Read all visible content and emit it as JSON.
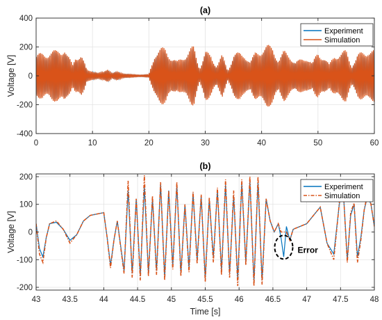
{
  "chart_data": [
    {
      "type": "line",
      "title": "(a)",
      "xlabel": "",
      "ylabel": "Voltage [V]",
      "xlim": [
        0,
        60
      ],
      "ylim": [
        -400,
        400
      ],
      "xticks": [
        "0",
        "10",
        "20",
        "30",
        "40",
        "50",
        "60"
      ],
      "yticks": [
        "400",
        "200",
        "0",
        "-200",
        "-400"
      ],
      "grid": true,
      "legend_position": "top-right",
      "series": [
        {
          "name": "Experiment",
          "color": "#0072BD",
          "style": "solid"
        },
        {
          "name": "Simulation",
          "color": "#D95319",
          "style": "solid"
        }
      ],
      "envelope": {
        "note": "peak amplitude of the oscillating voltage over time",
        "x": [
          0,
          1.5,
          2.5,
          3.5,
          4.5,
          5,
          5.5,
          6.5,
          7,
          8,
          9,
          10,
          11,
          12,
          12.7,
          13.5,
          14.5,
          15,
          16,
          17,
          18,
          19,
          20,
          21,
          22,
          23,
          24,
          25,
          26,
          27,
          27.5,
          28,
          29,
          30,
          31,
          32,
          33,
          34,
          35,
          36,
          37,
          38,
          39,
          40,
          41,
          42,
          43,
          44,
          45,
          46,
          47,
          48,
          49,
          50,
          51,
          52,
          53,
          54,
          55,
          56,
          57,
          58,
          59,
          60
        ],
        "y": [
          150,
          170,
          185,
          180,
          200,
          225,
          160,
          80,
          150,
          165,
          40,
          40,
          20,
          30,
          60,
          20,
          30,
          25,
          15,
          10,
          10,
          8,
          10,
          170,
          190,
          210,
          140,
          100,
          150,
          180,
          200,
          210,
          60,
          175,
          150,
          80,
          150,
          40,
          160,
          165,
          170,
          100,
          180,
          205,
          220,
          215,
          120,
          180,
          160,
          100,
          120,
          150,
          90,
          175,
          150,
          80,
          165,
          170,
          180,
          80,
          150,
          175,
          205,
          180
        ]
      }
    },
    {
      "type": "line",
      "title": "(b)",
      "xlabel": "Time [s]",
      "ylabel": "Voltage [V]",
      "xlim": [
        43,
        48
      ],
      "ylim": [
        -210,
        210
      ],
      "xticks": [
        "43",
        "43.5",
        "44",
        "44.5",
        "45",
        "45.5",
        "46",
        "46.5",
        "47",
        "47.5",
        "48"
      ],
      "yticks": [
        "200",
        "100",
        "0",
        "-100",
        "-200"
      ],
      "grid": true,
      "legend_position": "top-right",
      "annotation": {
        "text": "Error",
        "x": 46.66,
        "y": -55
      },
      "series": [
        {
          "name": "Experiment",
          "color": "#0072BD",
          "style": "solid",
          "x": [
            43,
            43.05,
            43.1,
            43.15,
            43.2,
            43.3,
            43.4,
            43.5,
            43.6,
            43.7,
            43.8,
            43.9,
            44,
            44.05,
            44.1,
            44.15,
            44.2,
            44.3,
            44.36,
            44.42,
            44.48,
            44.54,
            44.6,
            44.66,
            44.72,
            44.78,
            44.84,
            44.9,
            44.96,
            45.02,
            45.08,
            45.14,
            45.2,
            45.26,
            45.32,
            45.38,
            45.44,
            45.5,
            45.56,
            45.62,
            45.68,
            45.74,
            45.8,
            45.86,
            45.92,
            45.98,
            46.04,
            46.1,
            46.16,
            46.22,
            46.28,
            46.34,
            46.4,
            46.46,
            46.52,
            46.58,
            46.62,
            46.66,
            46.7,
            46.75,
            46.8,
            46.9,
            47,
            47.1,
            47.2,
            47.3,
            47.4,
            47.5,
            47.55,
            47.6,
            47.65,
            47.7,
            47.75,
            47.8,
            47.85,
            47.9,
            47.95,
            48
          ],
          "y": [
            30,
            -60,
            -90,
            -20,
            30,
            35,
            10,
            -30,
            -10,
            40,
            60,
            65,
            70,
            -20,
            -120,
            -30,
            40,
            -140,
            150,
            -150,
            120,
            -160,
            165,
            -150,
            120,
            -140,
            175,
            -165,
            150,
            -120,
            170,
            -150,
            100,
            -130,
            140,
            -100,
            130,
            -170,
            120,
            -90,
            150,
            -140,
            170,
            -150,
            130,
            -170,
            175,
            -110,
            185,
            -180,
            180,
            -175,
            120,
            40,
            0,
            30,
            -20,
            -90,
            20,
            -30,
            10,
            20,
            30,
            60,
            90,
            -40,
            -80,
            140,
            110,
            -100,
            60,
            100,
            -90,
            -20,
            80,
            130,
            100,
            20
          ]
        },
        {
          "name": "Simulation",
          "color": "#D95319",
          "style": "dash-dot",
          "x": [
            43,
            43.05,
            43.1,
            43.15,
            43.2,
            43.3,
            43.4,
            43.5,
            43.6,
            43.7,
            43.8,
            43.9,
            44,
            44.05,
            44.1,
            44.15,
            44.2,
            44.3,
            44.36,
            44.42,
            44.48,
            44.54,
            44.6,
            44.66,
            44.72,
            44.78,
            44.84,
            44.9,
            44.96,
            45.02,
            45.08,
            45.14,
            45.2,
            45.26,
            45.32,
            45.38,
            45.44,
            45.5,
            45.56,
            45.62,
            45.68,
            45.74,
            45.8,
            45.86,
            45.92,
            45.98,
            46.04,
            46.1,
            46.16,
            46.22,
            46.28,
            46.34,
            46.4,
            46.46,
            46.52,
            46.58,
            46.62,
            46.66,
            46.7,
            46.75,
            46.8,
            46.9,
            47,
            47.1,
            47.2,
            47.3,
            47.4,
            47.5,
            47.55,
            47.6,
            47.65,
            47.7,
            47.75,
            47.8,
            47.85,
            47.9,
            47.95,
            48
          ],
          "y": [
            30,
            -80,
            -110,
            -20,
            30,
            40,
            10,
            -40,
            -10,
            40,
            60,
            65,
            70,
            -20,
            -130,
            -30,
            40,
            -150,
            185,
            -165,
            120,
            -175,
            205,
            -160,
            130,
            -155,
            180,
            -175,
            150,
            -135,
            180,
            -160,
            100,
            -145,
            145,
            -115,
            135,
            -180,
            125,
            -110,
            160,
            -155,
            190,
            -165,
            150,
            -195,
            190,
            -120,
            200,
            -195,
            200,
            -190,
            120,
            40,
            0,
            30,
            0,
            0,
            0,
            -30,
            10,
            20,
            30,
            60,
            90,
            -40,
            -100,
            150,
            110,
            -110,
            70,
            105,
            -110,
            -30,
            80,
            140,
            100,
            20
          ]
        }
      ]
    }
  ]
}
